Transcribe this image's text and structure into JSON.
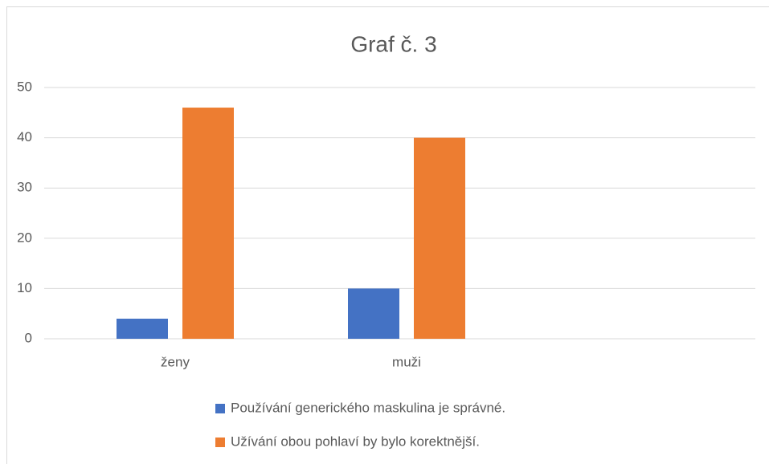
{
  "chart_data": {
    "type": "bar",
    "title": "Graf č. 3",
    "categories": [
      "ženy",
      "muži",
      null
    ],
    "series": [
      {
        "name": "Používání generického maskulina je správné.",
        "color": "#4472c4",
        "values": [
          4,
          10,
          null
        ]
      },
      {
        "name": "Užívání obou pohlaví by bylo korektnější.",
        "color": "#ed7d31",
        "values": [
          46,
          40,
          null
        ]
      }
    ],
    "ylim": [
      0,
      50
    ],
    "yticks": [
      0,
      10,
      20,
      30,
      40,
      50
    ],
    "grid": true,
    "legend": "bottom"
  }
}
